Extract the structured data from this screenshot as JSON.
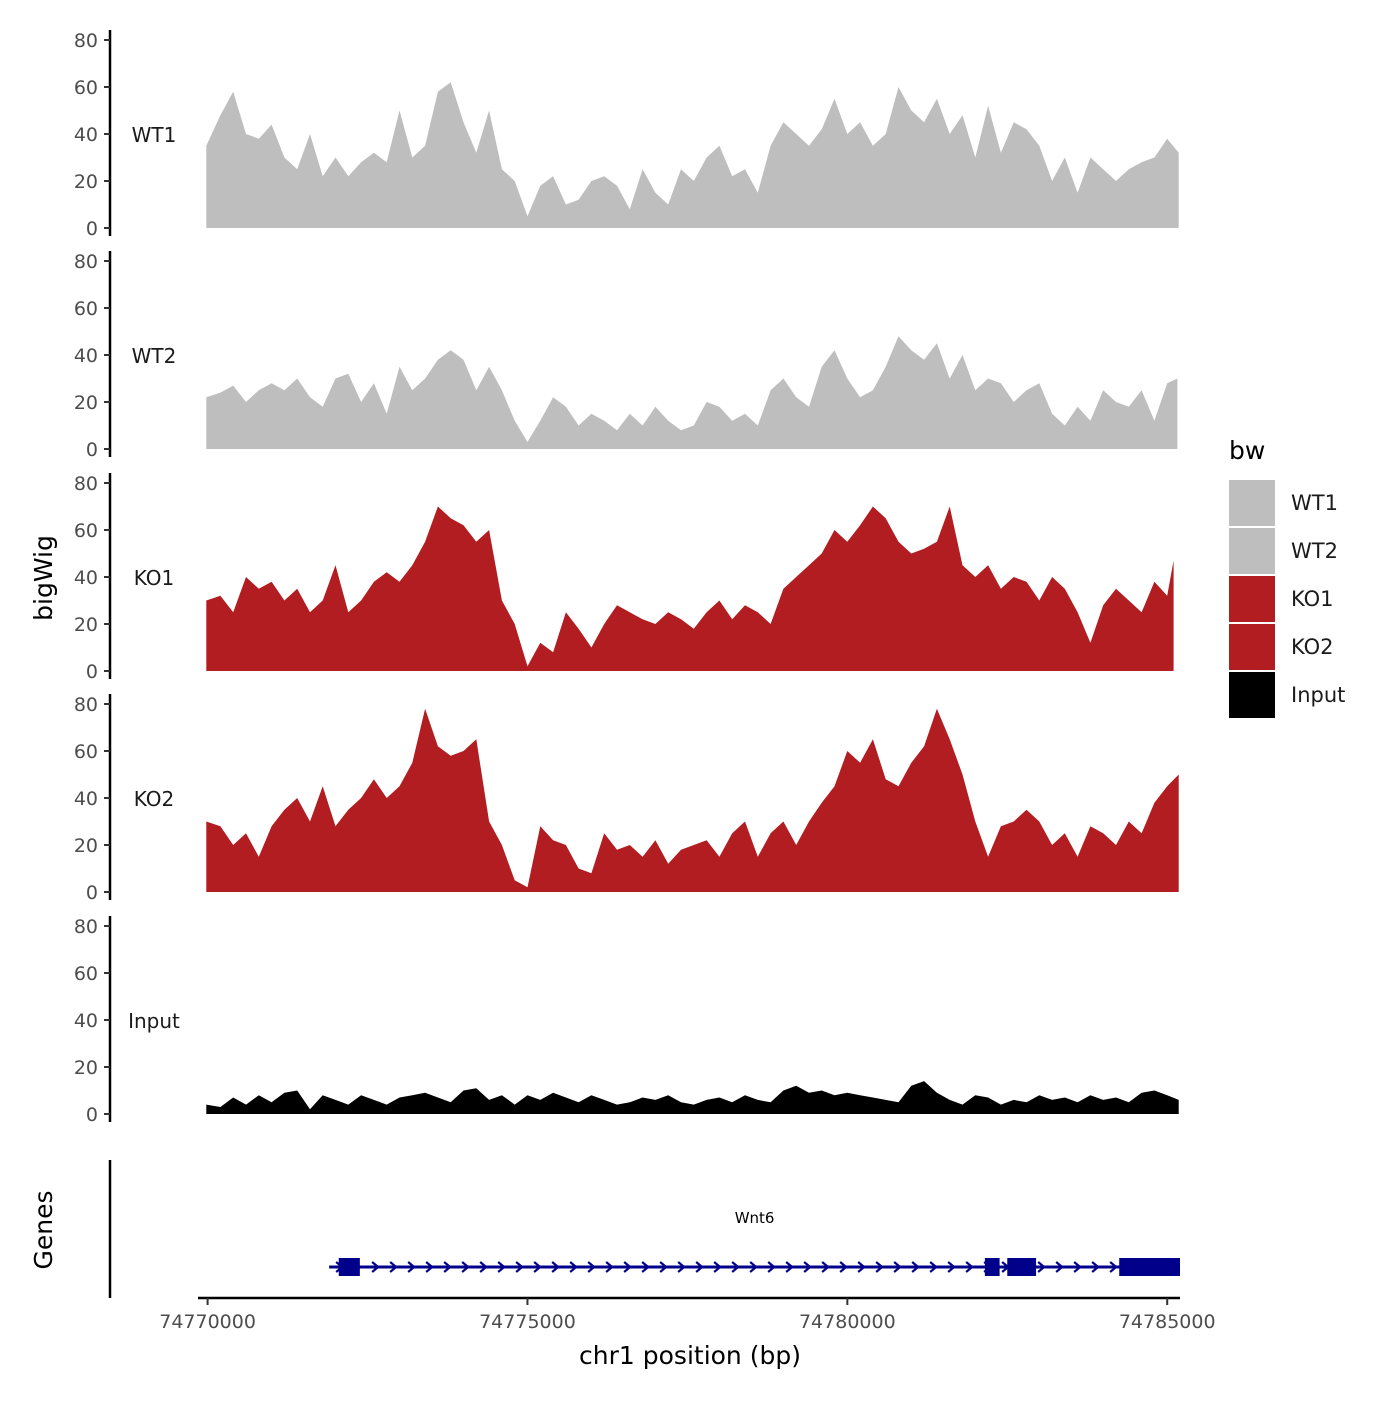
{
  "chart_data": {
    "type": "area",
    "ylabel": "bigWig",
    "xlabel": "chr1 position (bp)",
    "xlim": [
      74769850,
      74785200
    ],
    "ylim": [
      0,
      80
    ],
    "y_ticks": [
      0,
      20,
      40,
      60,
      80
    ],
    "x_ticks": [
      74770000,
      74775000,
      74780000,
      74785000
    ],
    "x_tick_labels": [
      "74770000",
      "74775000",
      "74780000",
      "74785000"
    ],
    "legend": {
      "title": "bw",
      "position": "right",
      "entries": [
        {
          "label": "WT1",
          "color": "#bebebe"
        },
        {
          "label": "WT2",
          "color": "#bebebe"
        },
        {
          "label": "KO1",
          "color": "#b11d21"
        },
        {
          "label": "KO2",
          "color": "#b11d21"
        },
        {
          "label": "Input",
          "color": "#000000"
        }
      ]
    },
    "series": [
      {
        "name": "WT1",
        "color": "#bebebe",
        "x": [
          74769980,
          74770200,
          74770400,
          74770600,
          74770800,
          74771000,
          74771200,
          74771400,
          74771600,
          74771800,
          74772000,
          74772200,
          74772400,
          74772600,
          74772800,
          74773000,
          74773200,
          74773400,
          74773600,
          74773800,
          74774000,
          74774200,
          74774400,
          74774600,
          74774800,
          74775000,
          74775200,
          74775400,
          74775600,
          74775800,
          74776000,
          74776200,
          74776400,
          74776600,
          74776800,
          74777000,
          74777200,
          74777400,
          74777600,
          74777800,
          74778000,
          74778200,
          74778400,
          74778600,
          74778800,
          74779000,
          74779200,
          74779400,
          74779600,
          74779800,
          74780000,
          74780200,
          74780400,
          74780600,
          74780800,
          74781000,
          74781200,
          74781400,
          74781600,
          74781800,
          74782000,
          74782200,
          74782400,
          74782600,
          74782800,
          74783000,
          74783200,
          74783400,
          74783600,
          74783800,
          74784000,
          74784200,
          74784400,
          74784600,
          74784800,
          74785000,
          74785180
        ],
        "values": [
          35,
          48,
          58,
          40,
          38,
          44,
          30,
          25,
          40,
          22,
          30,
          22,
          28,
          32,
          28,
          50,
          30,
          35,
          58,
          62,
          45,
          32,
          50,
          25,
          20,
          5,
          18,
          22,
          10,
          12,
          20,
          22,
          18,
          8,
          25,
          15,
          10,
          25,
          20,
          30,
          35,
          22,
          25,
          15,
          35,
          45,
          40,
          35,
          42,
          55,
          40,
          45,
          35,
          40,
          60,
          50,
          45,
          55,
          40,
          48,
          30,
          52,
          32,
          45,
          42,
          35,
          20,
          30,
          15,
          30,
          25,
          20,
          25,
          28,
          30,
          38,
          32
        ]
      },
      {
        "name": "WT2",
        "color": "#bebebe",
        "x": [
          74769980,
          74770200,
          74770400,
          74770600,
          74770800,
          74771000,
          74771200,
          74771400,
          74771600,
          74771800,
          74772000,
          74772200,
          74772400,
          74772600,
          74772800,
          74773000,
          74773200,
          74773400,
          74773600,
          74773800,
          74774000,
          74774200,
          74774400,
          74774600,
          74774800,
          74775000,
          74775200,
          74775400,
          74775600,
          74775800,
          74776000,
          74776200,
          74776400,
          74776600,
          74776800,
          74777000,
          74777200,
          74777400,
          74777600,
          74777800,
          74778000,
          74778200,
          74778400,
          74778600,
          74778800,
          74779000,
          74779200,
          74779400,
          74779600,
          74779800,
          74780000,
          74780200,
          74780400,
          74780600,
          74780800,
          74781000,
          74781200,
          74781400,
          74781600,
          74781800,
          74782000,
          74782200,
          74782400,
          74782600,
          74782800,
          74783000,
          74783200,
          74783400,
          74783600,
          74783800,
          74784000,
          74784200,
          74784400,
          74784600,
          74784800,
          74785000,
          74785160
        ],
        "values": [
          22,
          24,
          27,
          20,
          25,
          28,
          25,
          30,
          22,
          18,
          30,
          32,
          20,
          28,
          15,
          35,
          25,
          30,
          38,
          42,
          38,
          25,
          35,
          25,
          12,
          3,
          12,
          22,
          18,
          10,
          15,
          12,
          8,
          15,
          10,
          18,
          12,
          8,
          10,
          20,
          18,
          12,
          15,
          10,
          25,
          30,
          22,
          18,
          35,
          42,
          30,
          22,
          25,
          35,
          48,
          42,
          38,
          45,
          30,
          40,
          25,
          30,
          28,
          20,
          25,
          28,
          15,
          10,
          18,
          12,
          25,
          20,
          18,
          25,
          12,
          28,
          30
        ]
      },
      {
        "name": "KO1",
        "color": "#b11d21",
        "x": [
          74769980,
          74770200,
          74770400,
          74770600,
          74770800,
          74771000,
          74771200,
          74771400,
          74771600,
          74771800,
          74772000,
          74772200,
          74772400,
          74772600,
          74772800,
          74773000,
          74773200,
          74773400,
          74773600,
          74773800,
          74774000,
          74774200,
          74774400,
          74774600,
          74774800,
          74775000,
          74775200,
          74775400,
          74775600,
          74775800,
          74776000,
          74776200,
          74776400,
          74776600,
          74776800,
          74777000,
          74777200,
          74777400,
          74777600,
          74777800,
          74778000,
          74778200,
          74778400,
          74778600,
          74778800,
          74779000,
          74779200,
          74779400,
          74779600,
          74779800,
          74780000,
          74780200,
          74780400,
          74780600,
          74780800,
          74781000,
          74781200,
          74781400,
          74781600,
          74781800,
          74782000,
          74782200,
          74782400,
          74782600,
          74782800,
          74783000,
          74783200,
          74783400,
          74783600,
          74783800,
          74784000,
          74784200,
          74784400,
          74784600,
          74784800,
          74785000,
          74785100
        ],
        "values": [
          30,
          32,
          25,
          40,
          35,
          38,
          30,
          35,
          25,
          30,
          45,
          25,
          30,
          38,
          42,
          38,
          45,
          55,
          70,
          65,
          62,
          55,
          60,
          30,
          20,
          2,
          12,
          8,
          25,
          18,
          10,
          20,
          28,
          25,
          22,
          20,
          25,
          22,
          18,
          25,
          30,
          22,
          28,
          25,
          20,
          35,
          40,
          45,
          50,
          60,
          55,
          62,
          70,
          65,
          55,
          50,
          52,
          55,
          70,
          45,
          40,
          45,
          35,
          40,
          38,
          30,
          40,
          35,
          25,
          12,
          28,
          35,
          30,
          25,
          38,
          32,
          47
        ]
      },
      {
        "name": "KO2",
        "color": "#b11d21",
        "x": [
          74769980,
          74770200,
          74770400,
          74770600,
          74770800,
          74771000,
          74771200,
          74771400,
          74771600,
          74771800,
          74772000,
          74772200,
          74772400,
          74772600,
          74772800,
          74773000,
          74773200,
          74773400,
          74773600,
          74773800,
          74774000,
          74774200,
          74774400,
          74774600,
          74774800,
          74775000,
          74775200,
          74775400,
          74775600,
          74775800,
          74776000,
          74776200,
          74776400,
          74776600,
          74776800,
          74777000,
          74777200,
          74777400,
          74777600,
          74777800,
          74778000,
          74778200,
          74778400,
          74778600,
          74778800,
          74779000,
          74779200,
          74779400,
          74779600,
          74779800,
          74780000,
          74780200,
          74780400,
          74780600,
          74780800,
          74781000,
          74781200,
          74781400,
          74781600,
          74781800,
          74782000,
          74782200,
          74782400,
          74782600,
          74782800,
          74783000,
          74783200,
          74783400,
          74783600,
          74783800,
          74784000,
          74784200,
          74784400,
          74784600,
          74784800,
          74785000,
          74785180
        ],
        "values": [
          30,
          28,
          20,
          25,
          15,
          28,
          35,
          40,
          30,
          45,
          28,
          35,
          40,
          48,
          40,
          45,
          55,
          78,
          62,
          58,
          60,
          65,
          30,
          20,
          5,
          2,
          28,
          22,
          20,
          10,
          8,
          25,
          18,
          20,
          15,
          22,
          12,
          18,
          20,
          22,
          15,
          25,
          30,
          15,
          25,
          30,
          20,
          30,
          38,
          45,
          60,
          55,
          65,
          48,
          45,
          55,
          62,
          78,
          65,
          50,
          30,
          15,
          28,
          30,
          35,
          30,
          20,
          25,
          15,
          28,
          25,
          20,
          30,
          25,
          38,
          45,
          50
        ]
      },
      {
        "name": "Input",
        "color": "#000000",
        "x": [
          74769980,
          74770200,
          74770400,
          74770600,
          74770800,
          74771000,
          74771200,
          74771400,
          74771600,
          74771800,
          74772000,
          74772200,
          74772400,
          74772600,
          74772800,
          74773000,
          74773200,
          74773400,
          74773600,
          74773800,
          74774000,
          74774200,
          74774400,
          74774600,
          74774800,
          74775000,
          74775200,
          74775400,
          74775600,
          74775800,
          74776000,
          74776200,
          74776400,
          74776600,
          74776800,
          74777000,
          74777200,
          74777400,
          74777600,
          74777800,
          74778000,
          74778200,
          74778400,
          74778600,
          74778800,
          74779000,
          74779200,
          74779400,
          74779600,
          74779800,
          74780000,
          74780200,
          74780400,
          74780600,
          74780800,
          74781000,
          74781200,
          74781400,
          74781600,
          74781800,
          74782000,
          74782200,
          74782400,
          74782600,
          74782800,
          74783000,
          74783200,
          74783400,
          74783600,
          74783800,
          74784000,
          74784200,
          74784400,
          74784600,
          74784800,
          74785000,
          74785180
        ],
        "values": [
          4,
          3,
          7,
          4,
          8,
          5,
          9,
          10,
          2,
          8,
          6,
          4,
          8,
          6,
          4,
          7,
          8,
          9,
          7,
          5,
          10,
          11,
          6,
          8,
          4,
          8,
          6,
          9,
          7,
          5,
          8,
          6,
          4,
          5,
          7,
          6,
          8,
          5,
          4,
          6,
          7,
          5,
          8,
          6,
          5,
          10,
          12,
          9,
          10,
          8,
          9,
          8,
          7,
          6,
          5,
          12,
          14,
          9,
          6,
          4,
          8,
          7,
          4,
          6,
          5,
          8,
          6,
          7,
          5,
          8,
          6,
          7,
          5,
          9,
          10,
          8,
          6
        ]
      }
    ],
    "gene_track": {
      "label": "Genes",
      "gene_name": "Wnt6",
      "color": "#00008b",
      "strand": "+",
      "start": 74771900,
      "end": 74785200,
      "exons": [
        {
          "start": 74772050,
          "end": 74772380
        },
        {
          "start": 74782150,
          "end": 74782380
        },
        {
          "start": 74782500,
          "end": 74782950
        },
        {
          "start": 74784250,
          "end": 74785200
        }
      ]
    }
  }
}
